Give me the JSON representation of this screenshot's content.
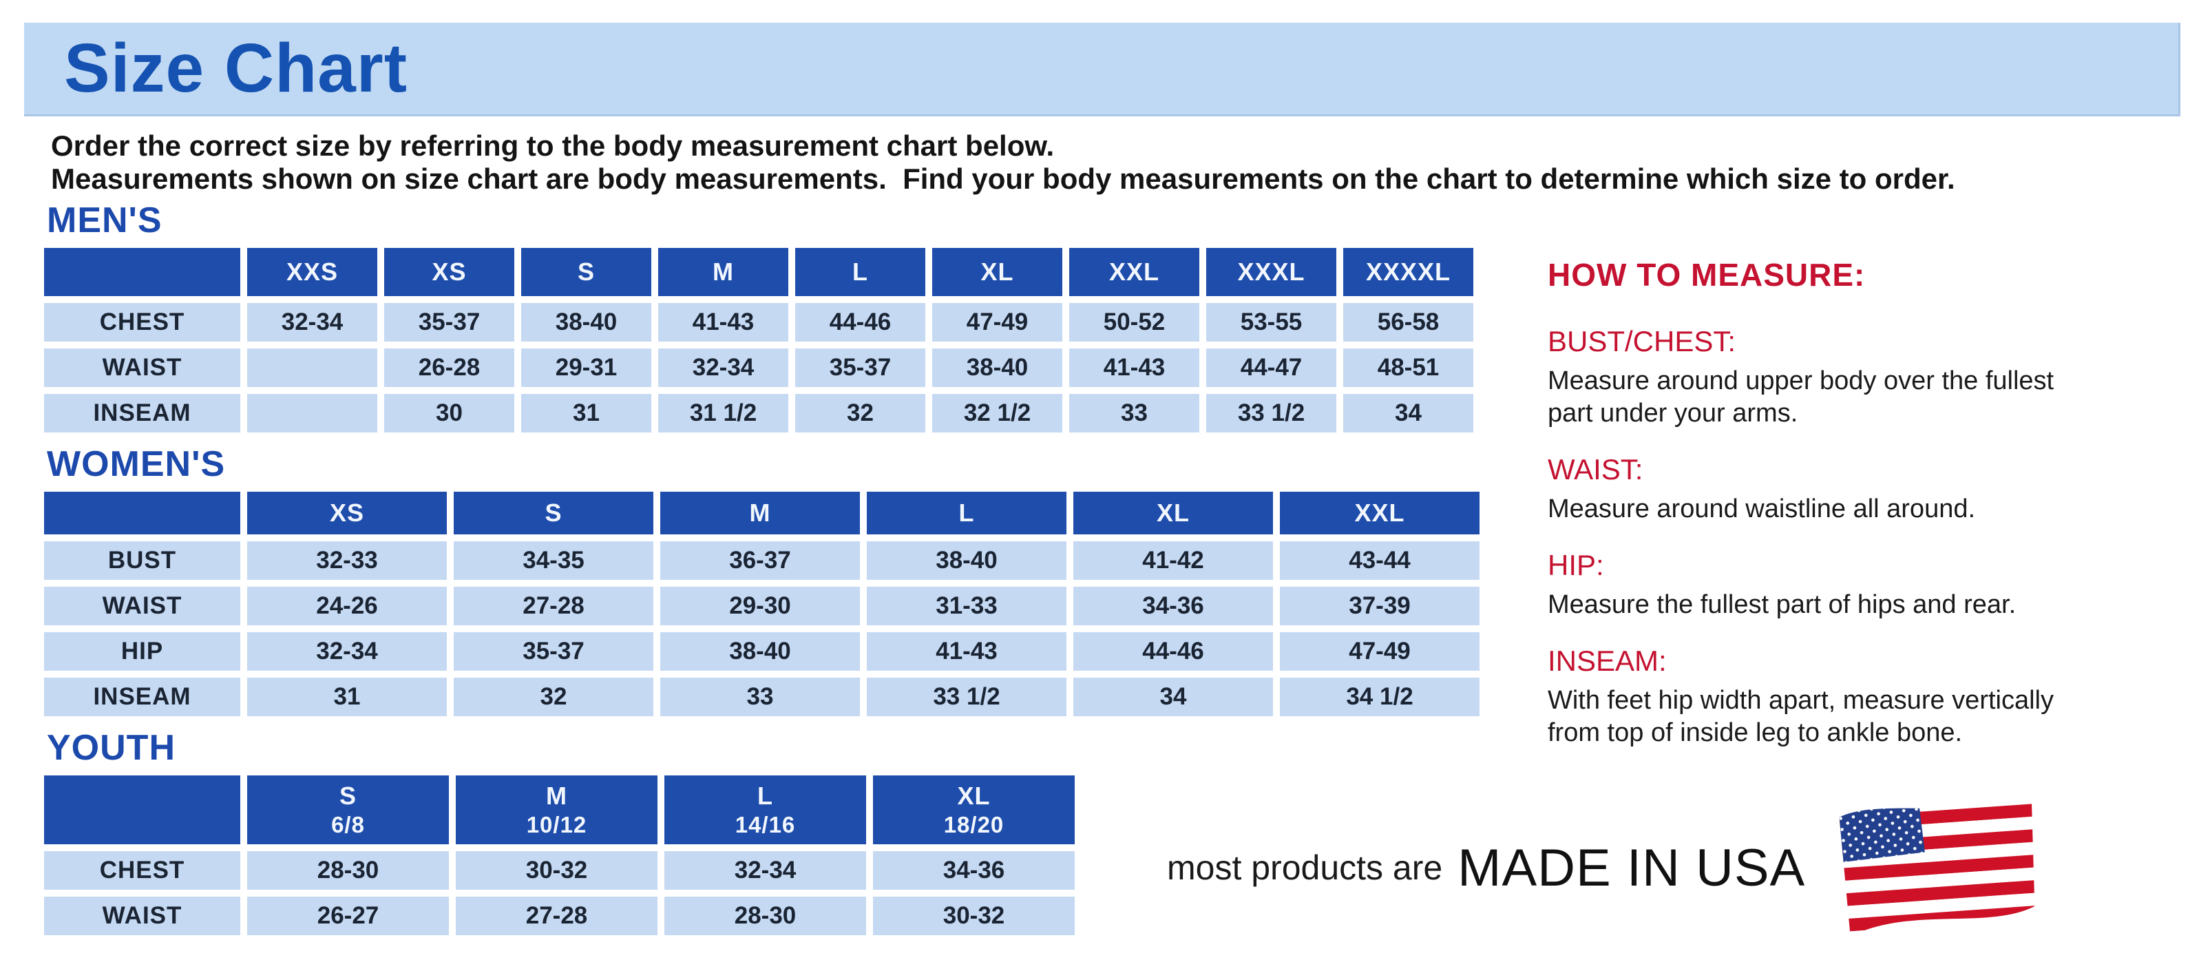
{
  "page": {
    "title": "Size Chart",
    "intro_line1": "Order the correct size by referring to the body measurement chart below.",
    "intro_line2": "Measurements shown on size chart are body measurements.  Find your body measurements on the chart to determine which size to order."
  },
  "colors": {
    "banner_background": "#BFD9F4",
    "title_blue": "#1552B1",
    "section_heading_blue": "#1C49AC",
    "table_header_blue": "#1F4DAB",
    "table_cell_blue": "#C5D9F3",
    "heading_red": "#C41230",
    "flag_red": "#CE1126",
    "flag_canton_blue": "#23408F"
  },
  "tables": [
    {
      "id": "mens",
      "section_label": "MEN'S",
      "columns": [
        {
          "label": "XXS"
        },
        {
          "label": "XS"
        },
        {
          "label": "S"
        },
        {
          "label": "M"
        },
        {
          "label": "L"
        },
        {
          "label": "XL"
        },
        {
          "label": "XXL"
        },
        {
          "label": "XXXL"
        },
        {
          "label": "XXXXL"
        }
      ],
      "rows": [
        {
          "label": "CHEST",
          "values": [
            "32-34",
            "35-37",
            "38-40",
            "41-43",
            "44-46",
            "47-49",
            "50-52",
            "53-55",
            "56-58"
          ]
        },
        {
          "label": "WAIST",
          "values": [
            "",
            "26-28",
            "29-31",
            "32-34",
            "35-37",
            "38-40",
            "41-43",
            "44-47",
            "48-51"
          ]
        },
        {
          "label": "INSEAM",
          "values": [
            "",
            "30",
            "31",
            "31 1/2",
            "32",
            "32 1/2",
            "33",
            "33 1/2",
            "34"
          ]
        }
      ]
    },
    {
      "id": "womens",
      "section_label": "WOMEN'S",
      "columns": [
        {
          "label": "XS"
        },
        {
          "label": "S"
        },
        {
          "label": "M"
        },
        {
          "label": "L"
        },
        {
          "label": "XL"
        },
        {
          "label": "XXL"
        }
      ],
      "rows": [
        {
          "label": "BUST",
          "values": [
            "32-33",
            "34-35",
            "36-37",
            "38-40",
            "41-42",
            "43-44"
          ]
        },
        {
          "label": "WAIST",
          "values": [
            "24-26",
            "27-28",
            "29-30",
            "31-33",
            "34-36",
            "37-39"
          ]
        },
        {
          "label": "HIP",
          "values": [
            "32-34",
            "35-37",
            "38-40",
            "41-43",
            "44-46",
            "47-49"
          ]
        },
        {
          "label": "INSEAM",
          "values": [
            "31",
            "32",
            "33",
            "33 1/2",
            "34",
            "34 1/2"
          ]
        }
      ]
    },
    {
      "id": "youth",
      "section_label": "YOUTH",
      "columns": [
        {
          "label": "S",
          "sub": "6/8"
        },
        {
          "label": "M",
          "sub": "10/12"
        },
        {
          "label": "L",
          "sub": "14/16"
        },
        {
          "label": "XL",
          "sub": "18/20"
        }
      ],
      "rows": [
        {
          "label": "CHEST",
          "values": [
            "28-30",
            "30-32",
            "32-34",
            "34-36"
          ]
        },
        {
          "label": "WAIST",
          "values": [
            "26-27",
            "27-28",
            "28-30",
            "30-32"
          ]
        }
      ]
    }
  ],
  "how_to_measure": {
    "title": "HOW TO MEASURE:",
    "items": [
      {
        "heading": "BUST/CHEST:",
        "text": "Measure around upper body over the fullest part under your arms."
      },
      {
        "heading": "WAIST:",
        "text": "Measure around waistline all around."
      },
      {
        "heading": "HIP:",
        "text": "Measure the fullest part of hips and rear."
      },
      {
        "heading": "INSEAM:",
        "text": "With feet hip width apart, measure vertically from top of inside leg to ankle bone."
      }
    ]
  },
  "footer": {
    "prefix": "most products are",
    "made_in": "MADE IN USA",
    "flag_icon": "usa-flag-icon"
  }
}
